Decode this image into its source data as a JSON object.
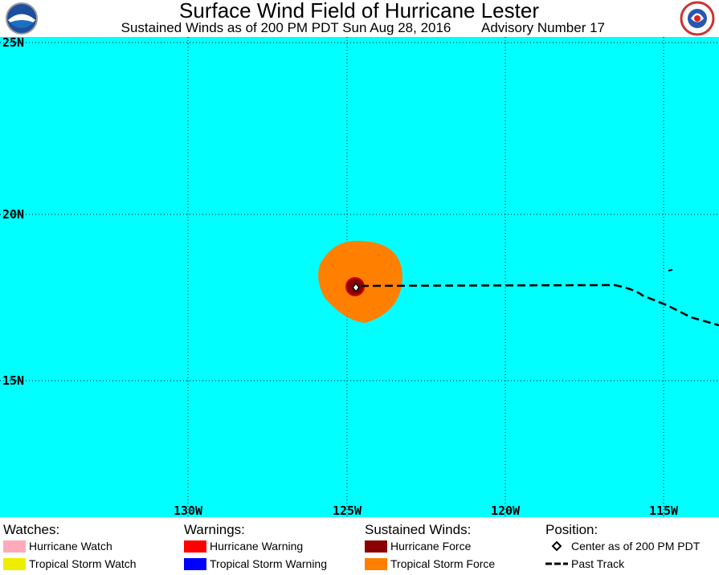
{
  "header": {
    "title": "Surface Wind Field of Hurricane Lester",
    "subtitle": "Sustained Winds as of 200 PM PDT Sun Aug 28, 2016",
    "advisory": "Advisory Number 17"
  },
  "map": {
    "lat_labels": [
      "25N",
      "20N",
      "15N"
    ],
    "lon_labels": [
      "130W",
      "125W",
      "120W",
      "115W"
    ]
  },
  "legend": {
    "groups": [
      {
        "title": "Watches:",
        "items": [
          "Hurricane Watch",
          "Tropical Storm Watch"
        ]
      },
      {
        "title": "Warnings:",
        "items": [
          "Hurricane Warning",
          "Tropical Storm Warning"
        ]
      },
      {
        "title": "Sustained Winds:",
        "items": [
          "Hurricane Force",
          "Tropical Storm Force"
        ]
      },
      {
        "title": "Position:",
        "items": [
          "Center as of 200 PM PDT",
          "Past Track"
        ]
      }
    ]
  }
}
